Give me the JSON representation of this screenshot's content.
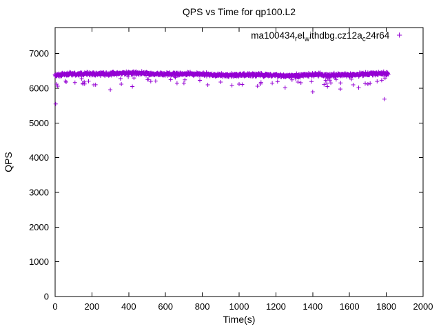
{
  "title": "QPS vs Time for qp100.L2",
  "axes": {
    "xlabel": "Time(s)",
    "ylabel": "QPS",
    "xlim": [
      0,
      2000
    ],
    "ylim": [
      0,
      7750
    ],
    "x_ticks": [
      0,
      200,
      400,
      600,
      800,
      1000,
      1200,
      1400,
      1600,
      1800,
      2000
    ],
    "y_ticks": [
      0,
      1000,
      2000,
      3000,
      4000,
      5000,
      6000,
      7000
    ],
    "grid": false
  },
  "legend": {
    "position": "top-right-inside",
    "label_plain": "ma100434_rel_withdbg.cz12a_c24r64",
    "segments": [
      {
        "t": "ma100434",
        "sub": false
      },
      {
        "t": "r",
        "sub": true
      },
      {
        "t": "el",
        "sub": false
      },
      {
        "t": "w",
        "sub": true
      },
      {
        "t": "ithdbg.cz12a",
        "sub": false
      },
      {
        "t": "c",
        "sub": true
      },
      {
        "t": "24r64",
        "sub": false
      }
    ],
    "marker_glyph": "+"
  },
  "colors": {
    "marker": "#9400d3",
    "axis": "#000000",
    "background": "#ffffff"
  },
  "chart_data": {
    "type": "scatter",
    "title": "QPS vs Time for qp100.L2",
    "xlabel": "Time(s)",
    "ylabel": "QPS",
    "xlim": [
      0,
      2000
    ],
    "ylim": [
      0,
      7750
    ],
    "series": [
      {
        "name": "ma100434_rel_withdbg.cz12a_c24r64",
        "marker": "plus",
        "color": "#9400d3",
        "band": {
          "description": "dense steady band of QPS samples",
          "t_range": [
            0,
            1812
          ],
          "n_points": 1500,
          "qps_mean": 6400,
          "qps_sd": 45,
          "qps_band": [
            6250,
            6555
          ],
          "low_tail_prob": 0.035,
          "low_tail_depth": [
            80,
            320
          ],
          "seed": 1234
        },
        "outliers": [
          [
            3,
            5550
          ],
          [
            8,
            6120
          ],
          [
            14,
            6060
          ],
          [
            60,
            6180
          ],
          [
            150,
            6150
          ],
          [
            210,
            6100
          ],
          [
            300,
            5960
          ],
          [
            360,
            6120
          ],
          [
            420,
            6050
          ],
          [
            520,
            6200
          ],
          [
            700,
            6150
          ],
          [
            830,
            6100
          ],
          [
            900,
            6180
          ],
          [
            1000,
            6120
          ],
          [
            1100,
            6060
          ],
          [
            1180,
            6150
          ],
          [
            1250,
            6020
          ],
          [
            1320,
            6180
          ],
          [
            1400,
            5900
          ],
          [
            1480,
            6050
          ],
          [
            1550,
            5980
          ],
          [
            1620,
            6100
          ],
          [
            1650,
            6020
          ],
          [
            1700,
            6120
          ],
          [
            1750,
            6200
          ],
          [
            1790,
            5690
          ]
        ]
      }
    ]
  }
}
